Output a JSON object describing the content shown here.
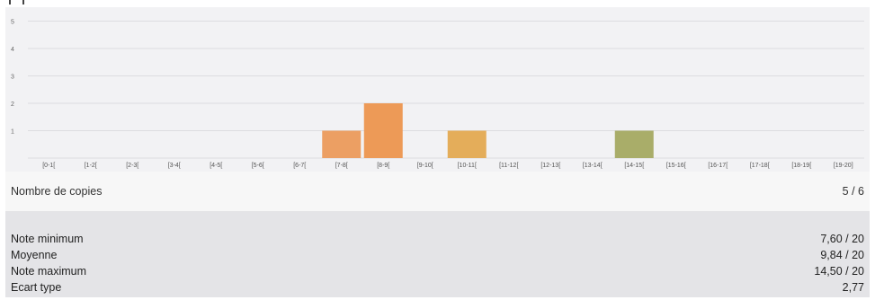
{
  "chart_data": {
    "type": "bar",
    "categories": [
      "[0-1[",
      "[1-2[",
      "[2-3[",
      "[3-4[",
      "[4-5[",
      "[5-6[",
      "[6-7[",
      "[7-8[",
      "[8-9[",
      "[9-10[",
      "[10-11[",
      "[11-12[",
      "[12-13[",
      "[13-14[",
      "[14-15[",
      "[15-16[",
      "[16-17[",
      "[17-18[",
      "[18-19[",
      "[19-20]"
    ],
    "values": [
      0,
      0,
      0,
      0,
      0,
      0,
      0,
      1,
      2,
      0,
      1,
      0,
      0,
      0,
      1,
      0,
      0,
      0,
      0,
      0
    ],
    "bar_colors": [
      "#e9a86a",
      "#e9a86a",
      "#e9a86a",
      "#e9a86a",
      "#e9a86a",
      "#e9a86a",
      "#e9a86a",
      "#ec9f63",
      "#ed9a57",
      "#e9a86a",
      "#e4ad5a",
      "#e9a86a",
      "#e9a86a",
      "#e9a86a",
      "#a9ad69",
      "#e9a86a",
      "#e9a86a",
      "#e9a86a",
      "#e9a86a",
      "#e9a86a"
    ],
    "yticks": [
      "1",
      "2",
      "3",
      "4",
      "5"
    ],
    "ylim": [
      0,
      5
    ],
    "grid": true,
    "title": "",
    "xlabel": "",
    "ylabel": ""
  },
  "summary": {
    "count_label": "Nombre de copies",
    "count_value": "5 / 6"
  },
  "stats": [
    {
      "label": "Note minimum",
      "value": "7,60 / 20"
    },
    {
      "label": "Moyenne",
      "value": "9,84 / 20"
    },
    {
      "label": "Note maximum",
      "value": "14,50 / 20"
    },
    {
      "label": "Ecart type",
      "value": "2,77"
    }
  ]
}
